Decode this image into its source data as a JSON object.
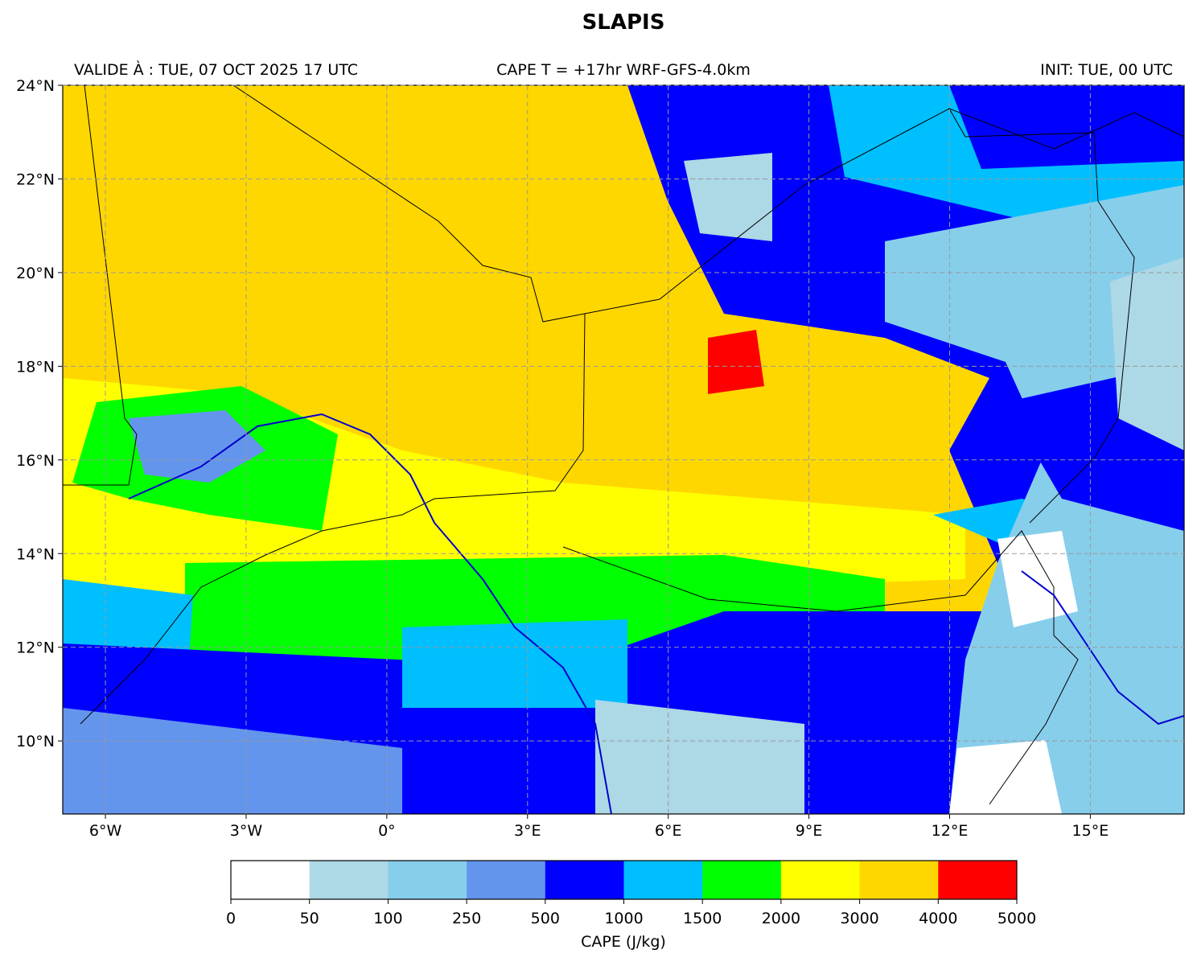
{
  "title": "SLAPIS",
  "subtitle_left": "VALIDE À : TUE, 07 OCT 2025 17 UTC",
  "subtitle_center": "CAPE T = +17hr WRF-GFS-4.0km",
  "subtitle_right": "INIT: TUE, 00 UTC",
  "map": {
    "xlim": [
      -6.91,
      17.0
    ],
    "ylim": [
      8.44,
      24
    ],
    "xticks": [
      {
        "value": -6,
        "label": "6°W"
      },
      {
        "value": -3,
        "label": "3°W"
      },
      {
        "value": 0,
        "label": "0°"
      },
      {
        "value": 3,
        "label": "3°E"
      },
      {
        "value": 6,
        "label": "6°E"
      },
      {
        "value": 9,
        "label": "9°E"
      },
      {
        "value": 12,
        "label": "12°E"
      },
      {
        "value": 15,
        "label": "15°E"
      }
    ],
    "yticks": [
      {
        "value": 10,
        "label": "10°N"
      },
      {
        "value": 12,
        "label": "12°N"
      },
      {
        "value": 14,
        "label": "14°N"
      },
      {
        "value": 16,
        "label": "16°N"
      },
      {
        "value": 18,
        "label": "18°N"
      },
      {
        "value": 20,
        "label": "20°N"
      },
      {
        "value": 22,
        "label": "22°N"
      },
      {
        "value": 24,
        "label": "24°N"
      }
    ],
    "grid": true
  },
  "colorbar": {
    "label": "CAPE (J/kg)",
    "levels": [
      0,
      50,
      100,
      250,
      500,
      1000,
      1500,
      2000,
      3000,
      4000,
      5000
    ],
    "colors": [
      "#ffffff",
      "#add8e6",
      "#87ceeb",
      "#6495ed",
      "#0000ff",
      "#00bfff",
      "#00ff00",
      "#ffff00",
      "#ffd700",
      "#ff0000"
    ]
  }
}
